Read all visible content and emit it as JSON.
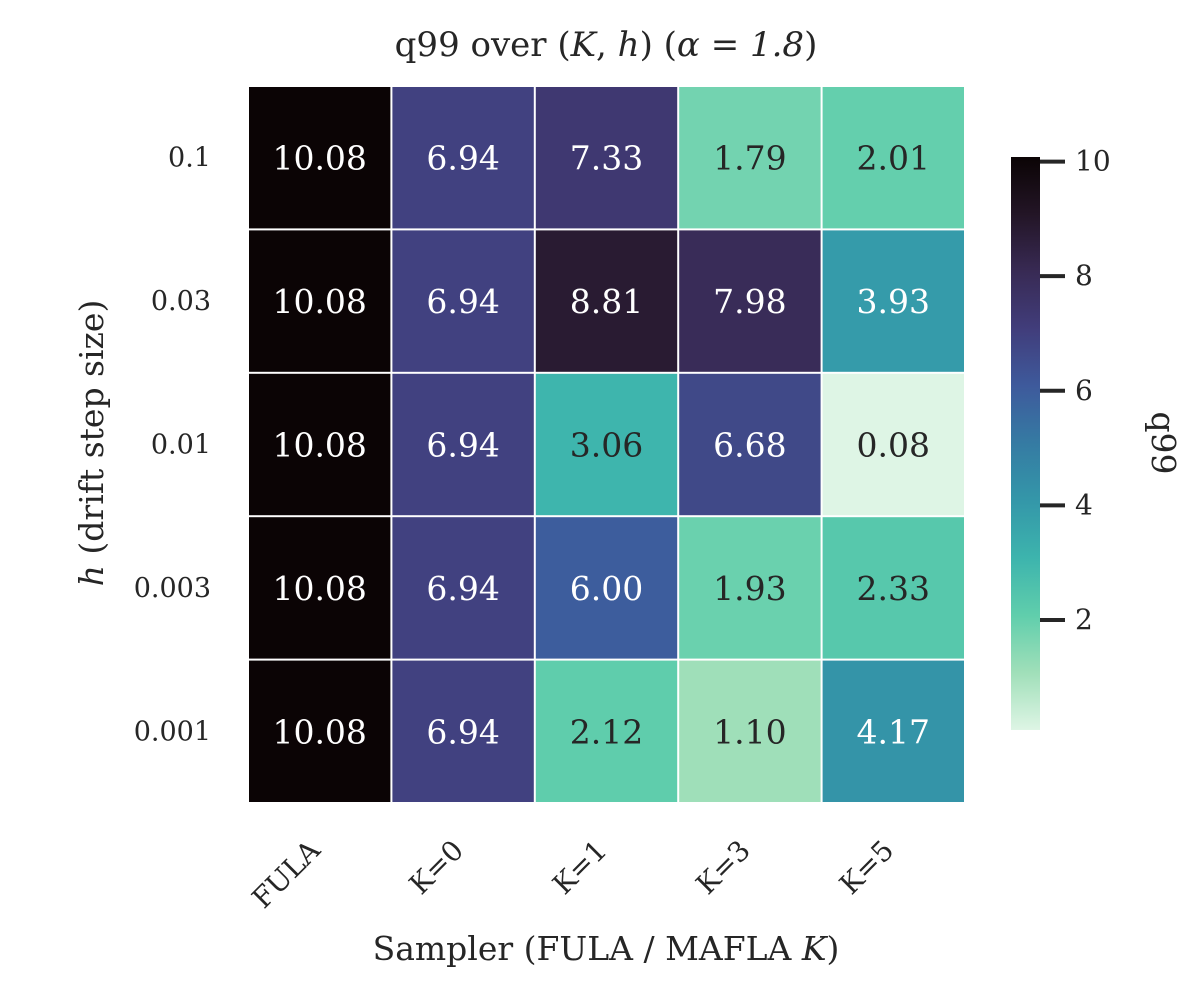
{
  "chart_data": {
    "type": "heatmap",
    "title_parts": {
      "prefix": "q99 over (",
      "var_k": "K",
      "comma": ", ",
      "var_h": "h",
      "mid": ") (",
      "alpha_eq": "α = 1.8",
      "suffix": ")"
    },
    "title": "q99 over (K, h) (α = 1.8)",
    "xlabel_parts": {
      "text": "Sampler (FULA / MAFLA ",
      "var": "K",
      "suffix": ")"
    },
    "xlabel": "Sampler (FULA / MAFLA K)",
    "ylabel_parts": {
      "var": "h",
      "text": " (drift step size)"
    },
    "ylabel": "h (drift step size)",
    "x_categories": [
      "FULA",
      "K=0",
      "K=1",
      "K=3",
      "K=5"
    ],
    "y_categories": [
      "0.1",
      "0.03",
      "0.01",
      "0.003",
      "0.001"
    ],
    "values": [
      [
        10.08,
        6.94,
        7.33,
        1.79,
        2.01
      ],
      [
        10.08,
        6.94,
        8.81,
        7.98,
        3.93
      ],
      [
        10.08,
        6.94,
        3.06,
        6.68,
        0.08
      ],
      [
        10.08,
        6.94,
        6.0,
        1.93,
        2.33
      ],
      [
        10.08,
        6.94,
        2.12,
        1.1,
        4.17
      ]
    ],
    "value_labels": [
      [
        "10.08",
        "6.94",
        "7.33",
        "1.79",
        "2.01"
      ],
      [
        "10.08",
        "6.94",
        "8.81",
        "7.98",
        "3.93"
      ],
      [
        "10.08",
        "6.94",
        "3.06",
        "6.68",
        "0.08"
      ],
      [
        "10.08",
        "6.94",
        "6.00",
        "1.93",
        "2.33"
      ],
      [
        "10.08",
        "6.94",
        "2.12",
        "1.10",
        "4.17"
      ]
    ],
    "colorbar": {
      "label": "q99",
      "vmin": 0.08,
      "vmax": 10.08,
      "ticks": [
        2,
        4,
        6,
        8,
        10
      ],
      "tick_labels": [
        "2",
        "4",
        "6",
        "8",
        "10"
      ]
    },
    "colormap": {
      "name": "mako_r",
      "stops": [
        "#def5e5",
        "#a0dfb9",
        "#60ceac",
        "#3db4ad",
        "#3497a9",
        "#357ba3",
        "#3e5a9c",
        "#413d7b",
        "#382a54",
        "#231526",
        "#0b0405"
      ]
    },
    "text_colors": {
      "light": "#ffffff",
      "dark": "#262626"
    }
  }
}
